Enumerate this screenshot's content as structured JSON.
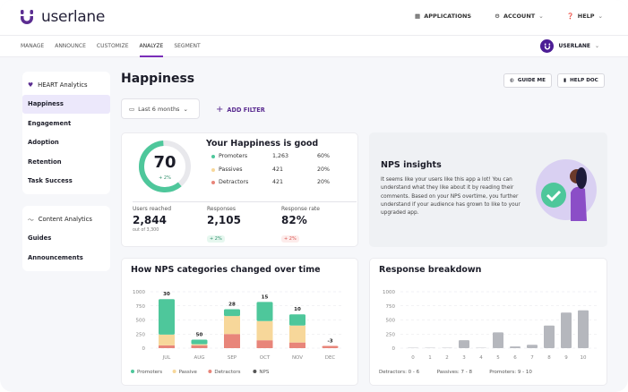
{
  "app": {
    "brand": "userlane",
    "top_nav": [
      {
        "label": "APPLICATIONS",
        "icon": "grid-icon"
      },
      {
        "label": "ACCOUNT",
        "icon": "gear-icon"
      },
      {
        "label": "HELP",
        "icon": "help-icon"
      }
    ]
  },
  "nav": {
    "items": [
      "MANAGE",
      "ANNOUNCE",
      "CUSTOMIZE",
      "ANALYZE",
      "SEGMENT"
    ],
    "active": "ANALYZE",
    "account": "USERLANE"
  },
  "sidebar": {
    "heart": {
      "title": "HEART Analytics",
      "items": [
        "Happiness",
        "Engagement",
        "Adoption",
        "Retention",
        "Task Success"
      ],
      "selected": "Happiness"
    },
    "content": {
      "title": "Content Analytics",
      "items": [
        "Guides",
        "Announcements"
      ]
    }
  },
  "page": {
    "title": "Happiness",
    "guide_me": "GUIDE ME",
    "help_doc": "HELP DOC",
    "date_filter": "Last 6 months",
    "add_filter": "ADD FILTER"
  },
  "happiness": {
    "score": "70",
    "score_change": "+ 2%",
    "score_fraction": 0.6,
    "title": "Your Happiness is good",
    "rows": [
      {
        "label": "Promoters",
        "count": "1,263",
        "pct": "60%",
        "color": "#4ec79b"
      },
      {
        "label": "Passives",
        "count": "421",
        "pct": "20%",
        "color": "#f7d79a"
      },
      {
        "label": "Detractors",
        "count": "421",
        "pct": "20%",
        "color": "#e8857a"
      }
    ],
    "stats": [
      {
        "label": "Users reached",
        "value": "2,844",
        "sub": "out of 3,300"
      },
      {
        "label": "Responses",
        "value": "2,105",
        "change": "+ 2%"
      },
      {
        "label": "Response rate",
        "value": "82%",
        "change": "+ 2%"
      }
    ]
  },
  "insights": {
    "title": "NPS insights",
    "text": "It seems like your users like this app a lot! You can understand what they like about it by reading their comments. Based on your NPS overtime, you further understand if your audience has grown to like to your upgraded app."
  },
  "chart_data": [
    {
      "type": "bar",
      "stacked": true,
      "title": "How NPS categories changed over time",
      "categories": [
        "JUL",
        "AUG",
        "SEP",
        "OCT",
        "NOV",
        "DEC"
      ],
      "ylim": [
        0,
        1000
      ],
      "yticks": [
        0,
        250,
        500,
        750,
        1000
      ],
      "grid": true,
      "series": [
        {
          "name": "Detractors",
          "color": "#e8857a",
          "values": [
            50,
            50,
            250,
            140,
            100,
            40
          ]
        },
        {
          "name": "Passive",
          "color": "#f7d79a",
          "values": [
            190,
            20,
            320,
            340,
            300,
            0
          ]
        },
        {
          "name": "Promoters",
          "color": "#4ec79b",
          "values": [
            630,
            80,
            120,
            340,
            200,
            0
          ]
        }
      ],
      "nps_labels": [
        "30",
        "50",
        "28",
        "15",
        "10",
        "-3"
      ],
      "legend": [
        {
          "name": "Promoters",
          "color": "#4ec79b"
        },
        {
          "name": "Passive",
          "color": "#f7d79a"
        },
        {
          "name": "Detractors",
          "color": "#e8857a"
        },
        {
          "name": "NPS",
          "color": "#555555"
        }
      ],
      "legend_position": "bottom"
    },
    {
      "type": "bar",
      "title": "Response breakdown",
      "categories": [
        "0",
        "1",
        "2",
        "3",
        "4",
        "5",
        "6",
        "7",
        "8",
        "9",
        "10"
      ],
      "values": [
        5,
        5,
        5,
        140,
        5,
        280,
        30,
        60,
        400,
        630,
        670
      ],
      "ylim": [
        0,
        1000
      ],
      "yticks": [
        0,
        250,
        500,
        750,
        1000
      ],
      "grid": true,
      "color": "#b5b7bd",
      "legend": [
        "Detractors: 0 - 6",
        "Passives: 7 - 8",
        "Promoters: 9 - 10"
      ]
    }
  ]
}
